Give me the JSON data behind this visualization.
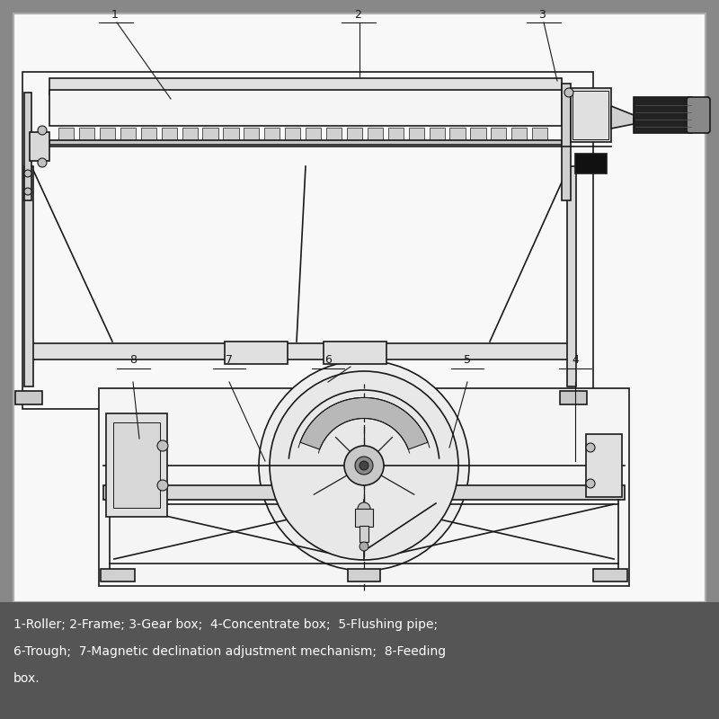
{
  "bg_color": "#888888",
  "panel_color": "#f8f8f8",
  "line_color": "#1a1a1a",
  "label_color": "#1a1a1a",
  "caption_bg": "#555555",
  "caption_color": "#ffffff",
  "caption_text_line1": "1-Roller; 2-Frame; 3-Gear box;  4-Concentrate box;  5-Flushing pipe;",
  "caption_text_line2": "6-Trough;  7-Magnetic declination adjustment mechanism;  8-Feeding",
  "caption_text_line3": "box."
}
